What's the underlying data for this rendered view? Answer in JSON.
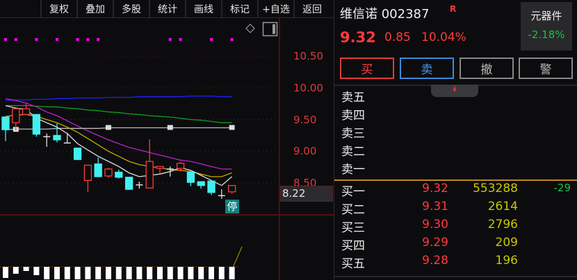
{
  "toolbar": {
    "buttons": [
      "复权",
      "叠加",
      "多股",
      "统计",
      "画线",
      "标记",
      "+自选",
      "返回"
    ]
  },
  "chart": {
    "yticks": [
      "10.50",
      "10.00",
      "9.50",
      "9.00",
      "8.50"
    ],
    "ytick_values": [
      10.5,
      10.0,
      9.5,
      9.0,
      8.5
    ],
    "last_value": "8.22",
    "limit_badge": "停",
    "colors": {
      "up": "#ff3a3a",
      "down": "#40f0f0",
      "ma5": "#e0e0e0",
      "ma10": "#c8a800",
      "ma20": "#c020d0",
      "ma30": "#10a020",
      "ma60": "#2020ff",
      "grid": "#7a1818"
    },
    "candles": [
      [
        9.54,
        9.54,
        9.16,
        9.34
      ],
      [
        9.45,
        9.67,
        9.33,
        9.67
      ],
      [
        9.58,
        9.75,
        9.57,
        9.67
      ],
      [
        9.58,
        9.58,
        9.23,
        9.27
      ],
      [
        9.23,
        9.28,
        9.07,
        9.23
      ],
      [
        9.25,
        9.44,
        9.14,
        9.18
      ],
      [
        9.13,
        9.29,
        9.13,
        9.13
      ],
      [
        9.05,
        9.05,
        8.86,
        8.87
      ],
      [
        8.54,
        8.78,
        8.36,
        8.78
      ],
      [
        8.8,
        8.9,
        8.59,
        8.6
      ],
      [
        8.61,
        8.74,
        8.58,
        8.72
      ],
      [
        8.67,
        8.71,
        8.57,
        8.59
      ],
      [
        8.59,
        8.59,
        8.39,
        8.4
      ],
      [
        8.47,
        8.52,
        8.41,
        8.47
      ],
      [
        8.42,
        9.19,
        8.41,
        8.84
      ],
      [
        8.73,
        8.76,
        8.64,
        8.76
      ],
      [
        8.72,
        8.76,
        8.6,
        8.71
      ],
      [
        8.73,
        8.83,
        8.68,
        8.81
      ],
      [
        8.67,
        8.67,
        8.45,
        8.51
      ],
      [
        8.52,
        8.52,
        8.41,
        8.46
      ],
      [
        8.53,
        8.53,
        8.31,
        8.35
      ],
      [
        8.3,
        8.4,
        8.25,
        8.3
      ],
      [
        8.36,
        8.46,
        8.33,
        8.46
      ]
    ],
    "ma5": [
      9.72,
      9.68,
      9.66,
      9.52,
      9.45,
      9.38,
      9.28,
      9.12,
      9.02,
      8.92,
      8.84,
      8.76,
      8.66,
      8.6,
      8.62,
      8.64,
      8.68,
      8.74,
      8.7,
      8.62,
      8.54,
      8.46,
      8.6
    ],
    "ma10": [
      9.55,
      9.57,
      9.58,
      9.55,
      9.5,
      9.45,
      9.38,
      9.3,
      9.2,
      9.1,
      9.0,
      8.92,
      8.84,
      8.79,
      8.76,
      8.74,
      8.71,
      8.7,
      8.68,
      8.64,
      8.6,
      8.6,
      8.66
    ],
    "ma20": [
      9.83,
      9.8,
      9.76,
      9.7,
      9.62,
      9.56,
      9.48,
      9.4,
      9.32,
      9.25,
      9.18,
      9.12,
      9.06,
      9.02,
      8.98,
      8.94,
      8.9,
      8.86,
      8.84,
      8.8,
      8.76,
      8.72,
      8.72
    ],
    "ma30": [
      9.72,
      9.72,
      9.72,
      9.71,
      9.7,
      9.7,
      9.68,
      9.67,
      9.65,
      9.64,
      9.62,
      9.61,
      9.59,
      9.58,
      9.56,
      9.55,
      9.54,
      9.52,
      9.5,
      9.49,
      9.47,
      9.45,
      9.45
    ],
    "ma60": [
      9.8,
      9.81,
      9.81,
      9.82,
      9.82,
      9.83,
      9.83,
      9.84,
      9.84,
      9.84,
      9.85,
      9.85,
      9.85,
      9.86,
      9.86,
      9.86,
      9.86,
      9.86,
      9.87,
      9.87,
      9.87,
      9.86,
      9.86
    ],
    "ref_line": [
      9.34,
      9.35,
      9.35,
      9.35,
      9.35,
      9.36,
      9.36,
      9.36,
      9.36,
      9.36,
      9.37,
      9.37,
      9.37,
      9.37,
      9.37,
      9.37,
      9.37,
      9.37,
      9.37,
      9.37,
      9.37,
      9.37,
      9.37
    ],
    "markers": [
      0,
      1,
      3,
      5,
      7,
      8,
      9,
      16,
      17,
      20,
      22
    ],
    "volume": [
      0.8,
      0.5,
      0.3,
      0.6,
      0.9,
      0.9,
      0.9,
      0.9,
      0.9,
      0.9,
      0.9,
      0.9,
      0.9,
      0.9,
      0.9,
      0.9,
      0.9,
      0.9,
      0.9,
      0.9,
      0.9,
      0.9,
      0.9
    ]
  },
  "quote": {
    "name": "维信诺 002387",
    "r_mark": "R",
    "price": "9.32",
    "change": "0.85",
    "change_pct": "10.04%",
    "sector_name": "元器件",
    "sector_pct": "-2.18%"
  },
  "actions": [
    "买",
    "卖",
    "撤",
    "警"
  ],
  "expand_icon": "double-chevron-down",
  "asks": [
    {
      "label": "卖五"
    },
    {
      "label": "卖四"
    },
    {
      "label": "卖三"
    },
    {
      "label": "卖二"
    },
    {
      "label": "卖一"
    }
  ],
  "bids": [
    {
      "label": "买一",
      "price": "9.32",
      "vol": "553288",
      "delta": "-29"
    },
    {
      "label": "买二",
      "price": "9.31",
      "vol": "2614",
      "delta": ""
    },
    {
      "label": "买三",
      "price": "9.30",
      "vol": "2796",
      "delta": ""
    },
    {
      "label": "买四",
      "price": "9.29",
      "vol": "209",
      "delta": ""
    },
    {
      "label": "买五",
      "price": "9.28",
      "vol": "196",
      "delta": ""
    }
  ]
}
